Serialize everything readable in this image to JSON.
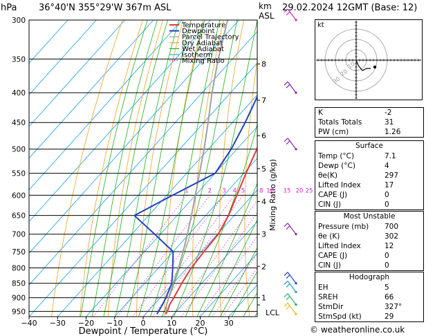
{
  "header": {
    "pressure_unit": "hPa",
    "location": "36°40'N  355°29'W  367m  ASL",
    "km_label": "km",
    "asl_label": "ASL",
    "datetime": "29.02.2024  12GMT  (Base: 12)"
  },
  "chart_data": {
    "type": "skew-t",
    "xlabel": "Dewpoint / Temperature (°C)",
    "mixing_ratio_axis_label": "Mixing Ratio (g/kg)",
    "pressure_levels": [
      300,
      350,
      400,
      450,
      500,
      550,
      600,
      650,
      700,
      750,
      800,
      850,
      900,
      950
    ],
    "temperature_ticks": [
      -40,
      -30,
      -20,
      -10,
      0,
      10,
      20,
      30
    ],
    "temperature_tick_labels": [
      "−40",
      "−30",
      "−20",
      "−10",
      "0",
      "10",
      "20",
      "30"
    ],
    "xlim": [
      -40,
      40
    ],
    "ylim_hpa": [
      300,
      970
    ],
    "km_ticks": [
      {
        "label": "8",
        "p": 357
      },
      {
        "label": "7",
        "p": 412
      },
      {
        "label": "6",
        "p": 474
      },
      {
        "label": "5",
        "p": 540
      },
      {
        "label": "4",
        "p": 615
      },
      {
        "label": "3",
        "p": 700
      },
      {
        "label": "2",
        "p": 795
      },
      {
        "label": "1",
        "p": 900
      }
    ],
    "lcl": {
      "label": "LCL",
      "p": 926
    },
    "mixing_ratio_labels": [
      "1",
      "2",
      "3",
      "4",
      "5",
      "8",
      "10",
      "15",
      "20",
      "25"
    ],
    "mixing_ratio_values": [
      1,
      2,
      3,
      4,
      5,
      8,
      10,
      15,
      20,
      25
    ],
    "legend": [
      "Temperature",
      "Dewpoint",
      "Parcel Trajectory",
      "Dry Adiabat",
      "Wet Adiabat",
      "Isotherm",
      "Mixing Ratio"
    ],
    "colors": {
      "temperature": "#e8343b",
      "dewpoint": "#1f3fc0",
      "parcel": "#a0a0a0",
      "dry_adiabat": "#f0a020",
      "wet_adiabat": "#1ab01a",
      "isotherm": "#2aa7e8",
      "mixing_ratio": "#e020d0"
    },
    "temperature_profile": [
      {
        "p": 960,
        "t": 7.1
      },
      {
        "p": 950,
        "t": 6.8
      },
      {
        "p": 925,
        "t": 5.5
      },
      {
        "p": 900,
        "t": 4.8
      },
      {
        "p": 850,
        "t": 3.0
      },
      {
        "p": 800,
        "t": 1.5
      },
      {
        "p": 750,
        "t": 0.8
      },
      {
        "p": 700,
        "t": 0.3
      },
      {
        "p": 650,
        "t": -2.0
      },
      {
        "p": 600,
        "t": -5.5
      },
      {
        "p": 550,
        "t": -9.2
      },
      {
        "p": 500,
        "t": -13.0
      },
      {
        "p": 450,
        "t": -18.5
      },
      {
        "p": 400,
        "t": -24.5
      },
      {
        "p": 350,
        "t": -31.5
      },
      {
        "p": 300,
        "t": -40.0
      }
    ],
    "dewpoint_profile": [
      {
        "p": 960,
        "t": 4.0
      },
      {
        "p": 925,
        "t": 3.0
      },
      {
        "p": 900,
        "t": 2.0
      },
      {
        "p": 850,
        "t": -0.5
      },
      {
        "p": 800,
        "t": -5.0
      },
      {
        "p": 750,
        "t": -10.0
      },
      {
        "p": 700,
        "t": -22.0
      },
      {
        "p": 650,
        "t": -35.0
      },
      {
        "p": 600,
        "t": -28.0
      },
      {
        "p": 550,
        "t": -20.0
      },
      {
        "p": 500,
        "t": -22.0
      },
      {
        "p": 450,
        "t": -25.5
      },
      {
        "p": 400,
        "t": -30.0
      },
      {
        "p": 350,
        "t": -36.5
      },
      {
        "p": 300,
        "t": -44.0
      }
    ],
    "parcel_profile": [
      {
        "p": 960,
        "t": 7.1
      },
      {
        "p": 926,
        "t": 4.5
      },
      {
        "p": 900,
        "t": 3.0
      },
      {
        "p": 850,
        "t": 0.0
      },
      {
        "p": 800,
        "t": -3.0
      },
      {
        "p": 750,
        "t": -6.5
      },
      {
        "p": 700,
        "t": -10.5
      },
      {
        "p": 650,
        "t": -15.0
      },
      {
        "p": 600,
        "t": -20.0
      },
      {
        "p": 550,
        "t": -25.5
      },
      {
        "p": 500,
        "t": -31.5
      },
      {
        "p": 450,
        "t": -38.5
      },
      {
        "p": 400,
        "t": -46.5
      },
      {
        "p": 350,
        "t": -55.0
      },
      {
        "p": 300,
        "t": -64.0
      }
    ],
    "wind_barbs": [
      {
        "p": 300,
        "color": "#e020d0"
      },
      {
        "p": 400,
        "color": "#8020c0"
      },
      {
        "p": 500,
        "color": "#8020c0"
      },
      {
        "p": 700,
        "color": "#8020c0"
      },
      {
        "p": 850,
        "color": "#2040d0"
      },
      {
        "p": 880,
        "color": "#20a0c0"
      },
      {
        "p": 925,
        "color": "#20b060"
      },
      {
        "p": 960,
        "color": "#e0c020"
      }
    ]
  },
  "hodograph": {
    "unit_label": "kt",
    "ring_labels": [
      "10",
      "20",
      "30"
    ],
    "points": [
      [
        0,
        0
      ],
      [
        2,
        -5
      ],
      [
        6,
        -10
      ],
      [
        10,
        -8
      ],
      [
        14,
        -8
      ]
    ]
  },
  "indices": {
    "rows": [
      {
        "label": "K",
        "value": "-2"
      },
      {
        "label": "Totals Totals",
        "value": "31"
      },
      {
        "label": "PW (cm)",
        "value": "1.26"
      }
    ]
  },
  "surface": {
    "title": "Surface",
    "rows": [
      {
        "label": "Temp (°C)",
        "value": "7.1"
      },
      {
        "label": "Dewp (°C)",
        "value": "4"
      },
      {
        "label": "θe(K)",
        "value": "297"
      },
      {
        "label": "Lifted Index",
        "value": "17"
      },
      {
        "label": "CAPE (J)",
        "value": "0"
      },
      {
        "label": "CIN (J)",
        "value": "0"
      }
    ]
  },
  "most_unstable": {
    "title": "Most Unstable",
    "rows": [
      {
        "label": "Pressure (mb)",
        "value": "700"
      },
      {
        "label": "θe (K)",
        "value": "302"
      },
      {
        "label": "Lifted Index",
        "value": "12"
      },
      {
        "label": "CAPE (J)",
        "value": "0"
      },
      {
        "label": "CIN (J)",
        "value": "0"
      }
    ]
  },
  "hodograph_box": {
    "title": "Hodograph",
    "rows": [
      {
        "label": "EH",
        "value": "5"
      },
      {
        "label": "SREH",
        "value": "66"
      },
      {
        "label": "StmDir",
        "value": "327°"
      },
      {
        "label": "StmSpd (kt)",
        "value": "29"
      }
    ]
  },
  "copyright": "© weatheronline.co.uk"
}
